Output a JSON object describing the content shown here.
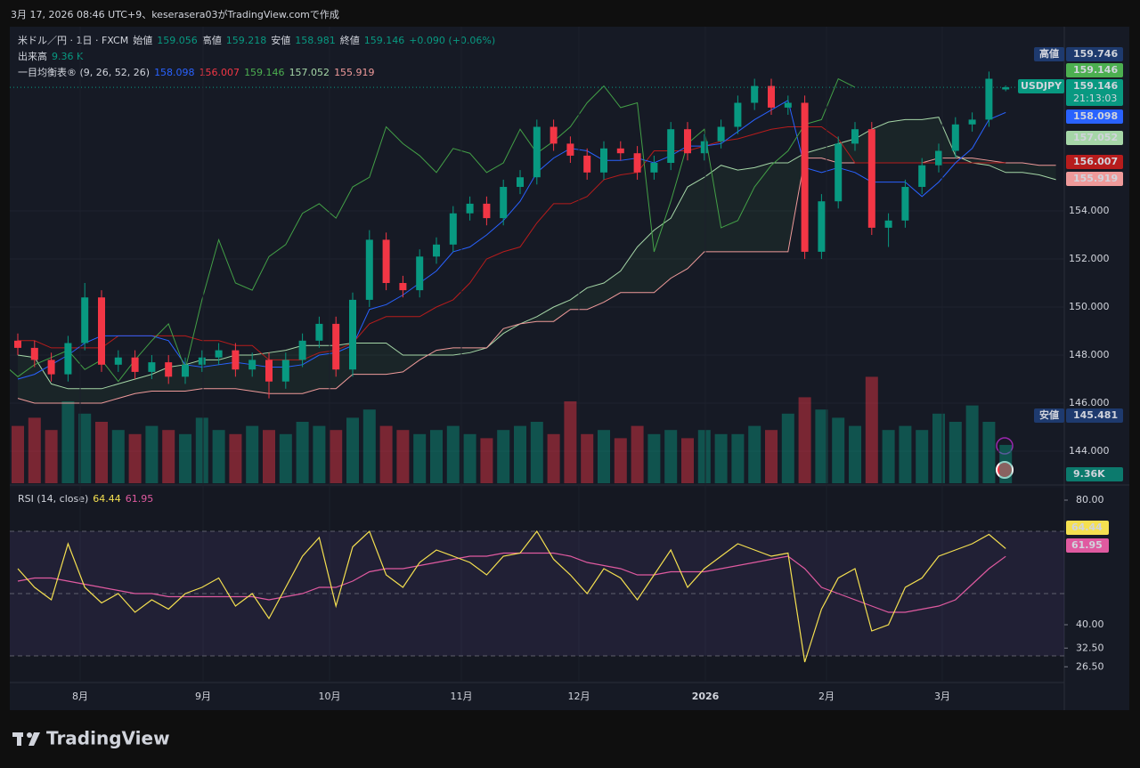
{
  "chart_data": {
    "type": "candlestick",
    "caption": "3月 17, 2026 08:46 UTC+9、keserasera03がTradingView.comで作成",
    "symbol": "米ドル／円 · 1日 · FXCM",
    "ohlc_legend": [
      {
        "name": "始値",
        "label": "159.056"
      },
      {
        "name": "高値",
        "label": "159.218"
      },
      {
        "name": "安値",
        "label": "158.981"
      },
      {
        "name": "終値",
        "label": "159.146"
      }
    ],
    "change": "+0.090 (+0.06%)",
    "volume_title": "出来高",
    "volume_last": "9.36 K",
    "ichimoku_title": "一目均衡表® (9, 26, 52, 26)",
    "ichimoku_legend": [
      {
        "label": "158.098",
        "color": "#2962ff"
      },
      {
        "label": "156.007",
        "color": "#f23645"
      },
      {
        "label": "159.146",
        "color": "#4caf50"
      },
      {
        "label": "157.052",
        "color": "#a5d6a7"
      },
      {
        "label": "155.919",
        "color": "#ef9a9a"
      }
    ],
    "up_color": "#089981",
    "down_color": "#f23645",
    "ylim": [
      142.667,
      161.667
    ],
    "yticks": [
      {
        "value": 144,
        "label": "144.000"
      },
      {
        "value": 146,
        "label": "146.000"
      },
      {
        "value": 148,
        "label": "148.000"
      },
      {
        "value": 150,
        "label": "150.000"
      },
      {
        "value": 152,
        "label": "152.000"
      },
      {
        "value": 154,
        "label": "154.000"
      }
    ],
    "time_labels": [
      "8月",
      "9月",
      "10月",
      "11月",
      "12月",
      "2026",
      "2月",
      "3月"
    ],
    "open": [
      148.6,
      148.3,
      147.8,
      147.2,
      148.5,
      150.4,
      147.6,
      147.9,
      147.3,
      147.7,
      147.1,
      147.6,
      147.9,
      148.2,
      147.4,
      147.8,
      146.9,
      147.8,
      148.6,
      149.3,
      147.4,
      150.3,
      152.8,
      151.0,
      150.7,
      152.1,
      152.6,
      153.9,
      154.3,
      153.7,
      155.0,
      155.4,
      157.5,
      156.8,
      156.3,
      155.6,
      156.6,
      156.4,
      155.6,
      156.0,
      157.4,
      156.4,
      156.9,
      157.5,
      158.5,
      159.2,
      158.3,
      158.5,
      152.3,
      154.4,
      156.8,
      157.4,
      153.3,
      153.6,
      155.0,
      155.9,
      156.5,
      157.6,
      157.8,
      159.056
    ],
    "high": [
      148.9,
      148.6,
      148.1,
      148.8,
      151.0,
      150.7,
      148.2,
      148.2,
      148.0,
      148.0,
      147.9,
      148.2,
      148.5,
      148.5,
      148.1,
      148.1,
      148.1,
      148.9,
      149.6,
      149.6,
      150.6,
      153.2,
      153.1,
      151.3,
      152.4,
      152.9,
      154.2,
      154.6,
      154.6,
      155.3,
      155.7,
      157.8,
      157.8,
      157.1,
      156.6,
      156.9,
      156.9,
      156.7,
      156.3,
      157.7,
      157.7,
      157.2,
      157.8,
      158.8,
      159.5,
      159.5,
      158.8,
      158.8,
      154.7,
      157.1,
      157.7,
      157.7,
      153.9,
      155.3,
      156.2,
      156.8,
      157.9,
      158.1,
      159.8,
      159.218
    ],
    "low": [
      148.0,
      147.5,
      146.9,
      146.9,
      148.2,
      147.3,
      147.3,
      147.0,
      147.0,
      146.8,
      146.8,
      147.3,
      147.6,
      147.1,
      147.1,
      146.2,
      146.6,
      147.5,
      148.3,
      147.1,
      147.1,
      150.0,
      150.7,
      150.4,
      150.4,
      151.8,
      152.3,
      153.6,
      153.4,
      153.4,
      154.7,
      155.1,
      156.5,
      156.0,
      155.3,
      155.3,
      156.1,
      155.3,
      155.3,
      155.7,
      156.1,
      156.1,
      156.6,
      157.2,
      158.2,
      158.0,
      158.0,
      152.0,
      152.0,
      154.1,
      156.5,
      153.0,
      152.5,
      153.3,
      154.7,
      155.6,
      156.2,
      157.3,
      157.5,
      158.981
    ],
    "close": [
      148.3,
      147.8,
      147.2,
      148.5,
      150.4,
      147.6,
      147.9,
      147.3,
      147.7,
      147.1,
      147.6,
      147.9,
      148.2,
      147.4,
      147.8,
      146.9,
      147.8,
      148.6,
      149.3,
      147.4,
      150.3,
      152.8,
      151.0,
      150.7,
      152.1,
      152.6,
      153.9,
      154.3,
      153.7,
      155.0,
      155.4,
      157.5,
      156.8,
      156.3,
      155.6,
      156.6,
      156.4,
      155.6,
      156.0,
      157.4,
      156.4,
      156.9,
      157.5,
      158.5,
      159.2,
      158.3,
      158.5,
      152.3,
      154.4,
      156.8,
      157.4,
      153.3,
      153.6,
      155.0,
      155.9,
      156.5,
      157.6,
      157.8,
      159.5,
      159.146
    ],
    "volume": [
      14,
      16,
      13,
      20,
      17,
      15,
      13,
      12,
      14,
      13,
      12,
      16,
      13,
      12,
      14,
      13,
      12,
      15,
      14,
      13,
      16,
      18,
      14,
      13,
      12,
      13,
      14,
      12,
      11,
      13,
      14,
      15,
      12,
      20,
      12,
      13,
      11,
      14,
      12,
      13,
      11,
      13,
      12,
      12,
      14,
      13,
      17,
      21,
      18,
      16,
      14,
      26,
      13,
      14,
      13,
      17,
      15,
      19,
      15,
      9.36
    ],
    "volume_lim": [
      0,
      30
    ],
    "conversion": {
      "color": "#2962ff",
      "values": [
        147.0,
        147.2,
        147.6,
        148.0,
        148.5,
        148.8,
        148.8,
        148.8,
        148.8,
        148.6,
        147.6,
        147.5,
        147.6,
        147.7,
        147.6,
        147.5,
        147.5,
        147.6,
        148.0,
        148.1,
        148.4,
        149.9,
        150.1,
        150.5,
        151.0,
        151.5,
        152.3,
        152.5,
        153.0,
        153.6,
        154.4,
        155.6,
        156.2,
        156.6,
        156.5,
        156.1,
        156.1,
        156.2,
        156.0,
        156.3,
        156.7,
        156.7,
        156.8,
        157.3,
        157.8,
        158.2,
        158.6,
        155.8,
        155.6,
        155.8,
        155.6,
        155.2,
        155.2,
        155.2,
        154.6,
        155.2,
        156.0,
        156.6,
        157.8,
        158.098
      ]
    },
    "base": {
      "color": "#b71c1c",
      "values": [
        148.6,
        148.6,
        148.3,
        148.3,
        148.3,
        148.3,
        148.8,
        148.8,
        148.8,
        148.8,
        148.8,
        148.6,
        148.6,
        148.4,
        148.4,
        147.8,
        147.8,
        147.8,
        148.1,
        148.2,
        148.5,
        149.3,
        149.6,
        149.6,
        149.6,
        150.0,
        150.3,
        151.0,
        152.0,
        152.3,
        152.5,
        153.5,
        154.3,
        154.3,
        154.6,
        155.3,
        155.5,
        155.6,
        156.5,
        156.5,
        156.5,
        156.7,
        156.9,
        157.0,
        157.2,
        157.4,
        157.5,
        157.5,
        157.5,
        157.0,
        156.0,
        156.0,
        156.0,
        156.0,
        156.0,
        156.0,
        156.0,
        156.0,
        156.0,
        156.007
      ]
    },
    "lagging": {
      "color": "#43a047",
      "shift": 9
    },
    "span_a": {
      "color": "#a5d6a7",
      "values": [
        148.0,
        147.9,
        146.8,
        146.6,
        146.6,
        146.6,
        146.8,
        147.0,
        147.2,
        147.5,
        147.6,
        147.8,
        147.8,
        148.0,
        148.0,
        148.1,
        148.2,
        148.4,
        148.4,
        148.4,
        148.5,
        148.5,
        148.5,
        148.0,
        148.0,
        148.0,
        148.0,
        148.1,
        148.3,
        148.9,
        149.3,
        149.6,
        150.0,
        150.3,
        150.8,
        151.0,
        151.5,
        152.5,
        153.2,
        153.7,
        155.0,
        155.4,
        155.9,
        155.7,
        155.8,
        156.0,
        156.0,
        156.4,
        156.6,
        156.8,
        157.0,
        157.4,
        157.7,
        157.8,
        157.8,
        157.9,
        156.3,
        156.0,
        155.9,
        155.6,
        155.6,
        155.5,
        155.3
      ]
    },
    "span_b": {
      "color": "#ef9a9a",
      "values": [
        146.2,
        146.0,
        146.0,
        146.0,
        146.0,
        146.0,
        146.2,
        146.4,
        146.5,
        146.5,
        146.5,
        146.6,
        146.6,
        146.6,
        146.5,
        146.4,
        146.4,
        146.4,
        146.6,
        146.6,
        147.2,
        147.2,
        147.2,
        147.3,
        147.8,
        148.2,
        148.3,
        148.3,
        148.3,
        149.1,
        149.3,
        149.4,
        149.4,
        149.9,
        149.9,
        150.2,
        150.6,
        150.6,
        150.6,
        151.2,
        151.6,
        152.3,
        152.3,
        152.3,
        152.3,
        152.3,
        152.3,
        156.2,
        156.2,
        156.0,
        156.0,
        156.0,
        156.0,
        156.0,
        156.0,
        156.2,
        156.2,
        156.2,
        156.1,
        156.0,
        156.0,
        155.9,
        155.9
      ]
    },
    "scale_tags": [
      {
        "tag": "高値",
        "label": "159.746",
        "color": "#1e3a6e"
      },
      {
        "label": "159.146",
        "color": "#4caf50"
      },
      {
        "tag": "USDJPY",
        "label": "159.146",
        "sub": "21:13:03",
        "color": "#089981"
      },
      {
        "label": "158.098",
        "color": "#2962ff"
      },
      {
        "label": "157.052",
        "color": "#a5d6a7"
      },
      {
        "label": "156.007",
        "color": "#b71c1c"
      },
      {
        "label": "155.919",
        "color": "#ef9a9a"
      },
      {
        "tag": "安値",
        "label": "145.481",
        "color": "#1e3a6e"
      },
      {
        "label": "9.36K",
        "color": "#0c7a6d"
      }
    ],
    "rsi": {
      "title": "RSI (14, close)",
      "legend_values": [
        "64.44",
        "61.95"
      ],
      "color": "#f5e050",
      "ma_color": "#e05aa0",
      "ylim": [
        22,
        84
      ],
      "yticks": [
        {
          "value": 80,
          "label": "80.00"
        },
        {
          "value": 40,
          "label": "40.00"
        },
        {
          "value": 32.5,
          "label": "32.50"
        },
        {
          "value": 26.5,
          "label": "26.50"
        }
      ],
      "bands": [
        70,
        50,
        30
      ],
      "values": [
        58,
        52,
        48,
        66,
        52,
        47,
        50,
        44,
        48,
        45,
        50,
        52,
        55,
        46,
        50,
        42,
        52,
        62,
        68,
        46,
        65,
        70,
        56,
        52,
        60,
        64,
        62,
        60,
        56,
        62,
        63,
        70,
        61,
        56,
        50,
        58,
        55,
        48,
        56,
        64,
        52,
        58,
        62,
        66,
        64,
        62,
        63,
        28,
        45,
        55,
        58,
        38,
        40,
        52,
        55,
        62,
        64,
        66,
        69,
        64.44
      ],
      "ma": [
        54,
        55,
        55,
        54,
        53,
        52,
        51,
        50,
        50,
        49,
        49,
        49,
        49,
        49,
        49,
        48,
        49,
        50,
        52,
        52,
        54,
        57,
        58,
        58,
        59,
        60,
        61,
        62,
        62,
        63,
        63,
        63,
        63,
        62,
        60,
        59,
        58,
        56,
        56,
        57,
        57,
        57,
        58,
        59,
        60,
        61,
        62,
        58,
        52,
        50,
        48,
        46,
        44,
        44,
        45,
        46,
        48,
        53,
        58,
        61.95
      ]
    },
    "brand": "TradingView"
  }
}
